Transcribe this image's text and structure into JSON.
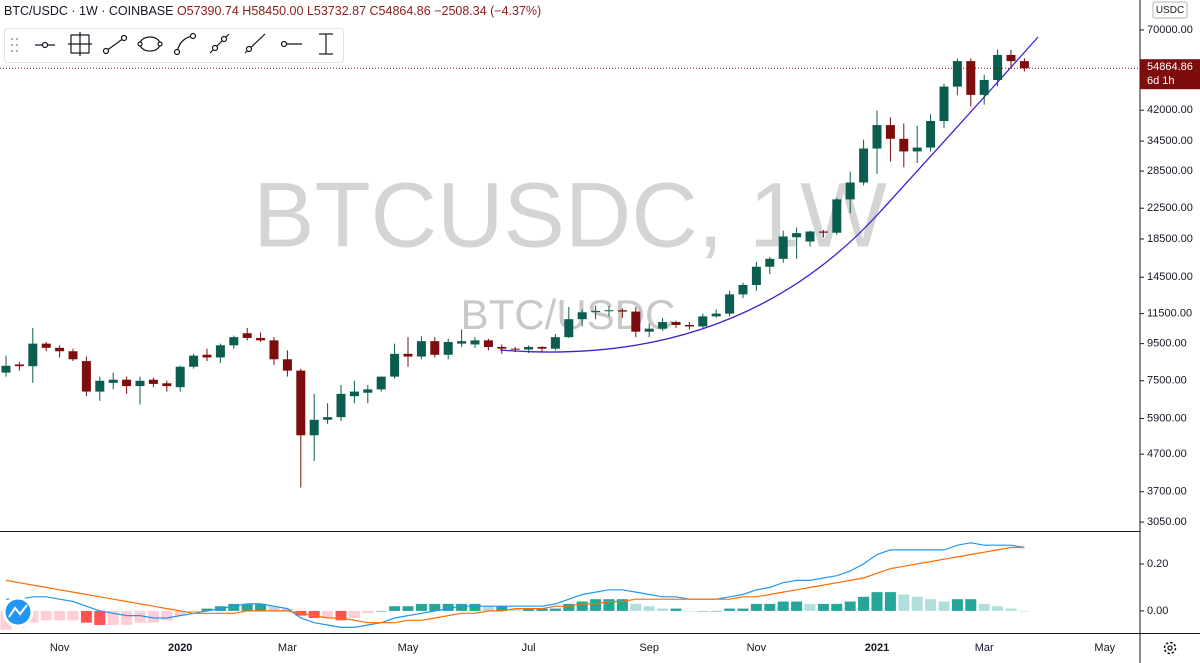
{
  "header": {
    "title": "BTC/USDC · 1W · COINBASE",
    "open": "O57390.74",
    "high": "H58450.00",
    "low": "L53732.87",
    "close": "C54864.86",
    "change": "−2508.34 (−4.37%)"
  },
  "watermark": {
    "main": "BTCUSDC, 1W",
    "sub": "BTC/USDC"
  },
  "currency": "USDC",
  "countdown": "6d 1h",
  "chart_data": [
    {
      "type": "candlestick",
      "categories": [
        null,
        null,
        null,
        null,
        "Nov",
        null,
        null,
        null,
        null,
        null,
        null,
        null,
        null,
        "2020",
        null,
        null,
        null,
        null,
        null,
        null,
        null,
        "Mar",
        null,
        null,
        null,
        null,
        null,
        null,
        null,
        null,
        "May",
        null,
        null,
        null,
        null,
        null,
        null,
        null,
        null,
        "Jul",
        null,
        null,
        null,
        null,
        null,
        null,
        null,
        null,
        "Sep",
        null,
        null,
        null,
        null,
        null,
        null,
        null,
        "Nov",
        null,
        null,
        null,
        null,
        null,
        null,
        null,
        null,
        "2021",
        null,
        null,
        null,
        null,
        null,
        null,
        null,
        "Mar",
        null,
        null,
        null,
        null,
        null,
        null,
        null,
        null,
        "May",
        null,
        null
      ],
      "open": [
        7900,
        8320,
        8230,
        9500,
        9250,
        9050,
        8500,
        7000,
        7400,
        7550,
        7250,
        7550,
        7380,
        7200,
        8200,
        8850,
        8700,
        9400,
        10150,
        9850,
        9700,
        8600,
        8000,
        5300,
        5850,
        5950,
        6800,
        6950,
        7100,
        7700,
        8900,
        8750,
        9650,
        8850,
        9500,
        9450,
        9700,
        9300,
        9200,
        9150,
        9300,
        9200,
        9900,
        11100,
        11650,
        11700,
        11750,
        11650,
        10250,
        10450,
        10900,
        10700,
        10600,
        11300,
        11500,
        13000,
        13800,
        15500,
        16300,
        18700,
        18200,
        19400,
        19250,
        23800,
        26500,
        32900,
        38200,
        35000,
        32300,
        33100,
        39200,
        48800,
        57400,
        46300,
        50900,
        59700,
        57390.74,
        null,
        null,
        null,
        null,
        null,
        null,
        null,
        null
      ],
      "high": [
        8800,
        8450,
        10500,
        9600,
        9400,
        9200,
        8750,
        7700,
        7900,
        7700,
        7700,
        7650,
        7500,
        8250,
        8900,
        9200,
        9500,
        10000,
        10500,
        10200,
        9900,
        9100,
        8100,
        6900,
        6500,
        7300,
        7500,
        7300,
        7700,
        9500,
        9900,
        9950,
        9900,
        9800,
        10400,
        9900,
        9800,
        9450,
        9300,
        9400,
        9350,
        10100,
        12000,
        11800,
        12100,
        12050,
        11900,
        12000,
        10800,
        11200,
        11000,
        10900,
        11500,
        11800,
        13300,
        14000,
        16000,
        16500,
        19500,
        19900,
        19500,
        19600,
        24000,
        28400,
        34800,
        41900,
        40100,
        38600,
        38000,
        40900,
        49700,
        58300,
        58400,
        52600,
        61800,
        61700,
        58450,
        null,
        null,
        null,
        null,
        null,
        null,
        null,
        null
      ],
      "low": [
        7700,
        8000,
        7400,
        9050,
        8700,
        8500,
        6800,
        6600,
        7100,
        6900,
        6450,
        7200,
        7000,
        7000,
        8100,
        8500,
        8400,
        9200,
        9700,
        9600,
        8300,
        7700,
        3800,
        4500,
        5700,
        5800,
        6500,
        6500,
        7000,
        7600,
        8200,
        8600,
        8700,
        8600,
        9300,
        9250,
        9100,
        8900,
        9000,
        8950,
        9000,
        9100,
        9850,
        10600,
        11100,
        11300,
        11200,
        9900,
        9900,
        10300,
        10500,
        10400,
        10500,
        11200,
        11300,
        12700,
        13300,
        14800,
        15900,
        16300,
        17600,
        18700,
        19000,
        21800,
        26000,
        28000,
        30300,
        29200,
        30000,
        32300,
        37500,
        46200,
        43000,
        43500,
        48900,
        55000,
        53732.87,
        null,
        null,
        null,
        null,
        null,
        null,
        null,
        null
      ],
      "close": [
        8250,
        8230,
        9500,
        9250,
        9050,
        8600,
        7000,
        7500,
        7550,
        7250,
        7500,
        7350,
        7250,
        8200,
        8800,
        8700,
        9400,
        9900,
        9850,
        9700,
        8600,
        8000,
        5300,
        5850,
        5950,
        6900,
        7000,
        7100,
        7700,
        8900,
        8750,
        9650,
        8850,
        9600,
        9650,
        9700,
        9300,
        9200,
        9150,
        9300,
        9200,
        9900,
        11100,
        11600,
        11700,
        11750,
        11650,
        10250,
        10450,
        10900,
        10700,
        10600,
        11300,
        11500,
        13000,
        13800,
        15500,
        16300,
        18800,
        19200,
        19400,
        19250,
        23800,
        26500,
        32900,
        38200,
        35000,
        32300,
        33100,
        39200,
        48800,
        57400,
        46300,
        50900,
        59700,
        57400,
        54864.86,
        null,
        null,
        null,
        null,
        null,
        null,
        null,
        null
      ],
      "ylim": [
        2900,
        84700
      ],
      "log_scale": true,
      "yticks": [
        {
          "value": 70000,
          "label": "70000.00"
        },
        {
          "value": 42000,
          "label": "42000.00"
        },
        {
          "value": 34500,
          "label": "34500.00"
        },
        {
          "value": 28500,
          "label": "28500.00"
        },
        {
          "value": 22500,
          "label": "22500.00"
        },
        {
          "value": 18500,
          "label": "18500.00"
        },
        {
          "value": 14500,
          "label": "14500.00"
        },
        {
          "value": 11500,
          "label": "11500.00"
        },
        {
          "value": 9500,
          "label": "9500.00"
        },
        {
          "value": 7500,
          "label": "7500.00"
        },
        {
          "value": 5900,
          "label": "5900.00"
        },
        {
          "value": 4700,
          "label": "4700.00"
        },
        {
          "value": 3700,
          "label": "3700.00"
        },
        {
          "value": 3050,
          "label": "3050.00"
        }
      ],
      "up_color": "#0b5d4f",
      "down_color": "#7d0c0c"
    },
    {
      "type": "macd",
      "series": [
        {
          "color": "#2196f3",
          "values": [
            0.05,
            0.05,
            0.06,
            0.06,
            0.05,
            0.04,
            0.02,
            0.0,
            -0.01,
            -0.02,
            -0.02,
            -0.03,
            -0.03,
            -0.02,
            -0.01,
            0.0,
            0.01,
            0.02,
            0.03,
            0.03,
            0.02,
            0.01,
            -0.03,
            -0.05,
            -0.06,
            -0.07,
            -0.07,
            -0.06,
            -0.05,
            -0.03,
            -0.02,
            -0.01,
            0.0,
            0.01,
            0.02,
            0.02,
            0.02,
            0.02,
            0.02,
            0.02,
            0.02,
            0.03,
            0.05,
            0.07,
            0.08,
            0.09,
            0.09,
            0.08,
            0.07,
            0.06,
            0.06,
            0.05,
            0.05,
            0.05,
            0.06,
            0.07,
            0.09,
            0.1,
            0.12,
            0.13,
            0.13,
            0.14,
            0.15,
            0.17,
            0.2,
            0.24,
            0.26,
            0.26,
            0.26,
            0.26,
            0.26,
            0.28,
            0.29,
            0.28,
            0.28,
            0.28,
            0.27,
            null,
            null,
            null,
            null,
            null,
            null,
            null,
            null
          ]
        },
        {
          "color": "#ff6d00",
          "values": [
            0.13,
            0.12,
            0.11,
            0.1,
            0.09,
            0.08,
            0.07,
            0.06,
            0.05,
            0.04,
            0.03,
            0.02,
            0.01,
            0.0,
            -0.01,
            -0.01,
            -0.01,
            -0.01,
            0.0,
            0.0,
            0.0,
            0.0,
            -0.01,
            -0.02,
            -0.03,
            -0.03,
            -0.04,
            -0.05,
            -0.05,
            -0.05,
            -0.04,
            -0.04,
            -0.03,
            -0.02,
            -0.01,
            -0.01,
            0.0,
            0.0,
            0.01,
            0.01,
            0.01,
            0.02,
            0.02,
            0.03,
            0.03,
            0.04,
            0.04,
            0.05,
            0.05,
            0.05,
            0.05,
            0.05,
            0.05,
            0.05,
            0.05,
            0.06,
            0.06,
            0.07,
            0.08,
            0.09,
            0.1,
            0.11,
            0.12,
            0.13,
            0.14,
            0.16,
            0.18,
            0.19,
            0.2,
            0.21,
            0.22,
            0.23,
            0.24,
            0.25,
            0.26,
            0.27,
            0.27,
            null,
            null,
            null,
            null,
            null,
            null,
            null,
            null
          ]
        }
      ],
      "histogram": {
        "values": [
          -0.08,
          -0.07,
          -0.05,
          -0.04,
          -0.04,
          -0.04,
          -0.05,
          -0.06,
          -0.06,
          -0.06,
          -0.05,
          -0.05,
          -0.04,
          -0.02,
          0.0,
          0.01,
          0.02,
          0.03,
          0.03,
          0.03,
          0.02,
          0.01,
          -0.02,
          -0.03,
          -0.03,
          -0.04,
          -0.03,
          -0.01,
          0.0,
          0.02,
          0.02,
          0.03,
          0.03,
          0.03,
          0.03,
          0.03,
          0.02,
          0.02,
          0.01,
          0.01,
          0.01,
          0.01,
          0.03,
          0.04,
          0.05,
          0.05,
          0.05,
          0.03,
          0.02,
          0.01,
          0.01,
          0.0,
          0.0,
          0.0,
          0.01,
          0.01,
          0.03,
          0.03,
          0.04,
          0.04,
          0.03,
          0.03,
          0.03,
          0.04,
          0.06,
          0.08,
          0.08,
          0.07,
          0.06,
          0.05,
          0.04,
          0.05,
          0.05,
          0.03,
          0.02,
          0.01,
          0.0,
          null,
          null,
          null,
          null,
          null,
          null,
          null,
          null
        ],
        "colors": {
          "up_rising": "#26a69a",
          "up_falling": "#b2dfdb",
          "down_falling": "#ff5252",
          "down_rising": "#ffcdd2"
        }
      },
      "ylim": [
        -0.094,
        0.336
      ],
      "yticks": [
        {
          "value": 0.2,
          "label": "0.20"
        },
        {
          "value": 0,
          "label": "0.00"
        }
      ]
    }
  ]
}
